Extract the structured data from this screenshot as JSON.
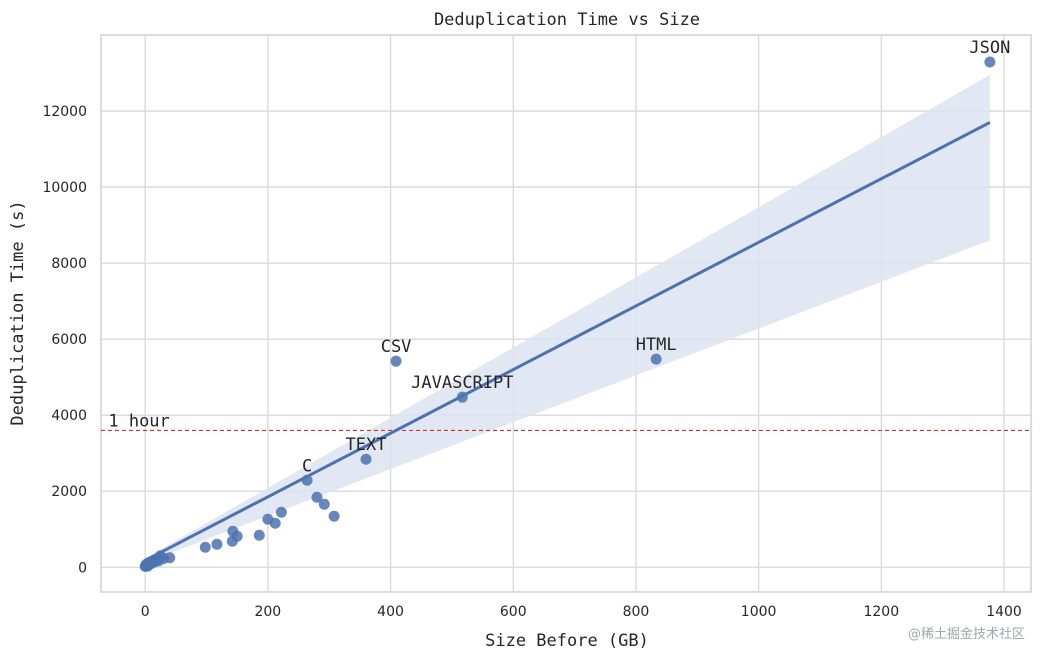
{
  "chart_data": {
    "type": "scatter",
    "title": "Deduplication Time vs Size",
    "xlabel": "Size Before (GB)",
    "ylabel": "Deduplication Time (s)",
    "xlim": [
      -72,
      1444
    ],
    "ylim": [
      -650,
      14000
    ],
    "xticks": [
      0,
      200,
      400,
      600,
      800,
      1000,
      1200,
      1400
    ],
    "yticks": [
      0,
      2000,
      4000,
      6000,
      8000,
      10000,
      12000
    ],
    "grid": true,
    "points": [
      {
        "x": 0,
        "y": 20
      },
      {
        "x": 1,
        "y": 60
      },
      {
        "x": 2,
        "y": 40
      },
      {
        "x": 3,
        "y": 90
      },
      {
        "x": 4,
        "y": 30
      },
      {
        "x": 5,
        "y": 110
      },
      {
        "x": 6,
        "y": 70
      },
      {
        "x": 8,
        "y": 130
      },
      {
        "x": 10,
        "y": 100
      },
      {
        "x": 12,
        "y": 160
      },
      {
        "x": 15,
        "y": 140
      },
      {
        "x": 18,
        "y": 190
      },
      {
        "x": 22,
        "y": 170
      },
      {
        "x": 25,
        "y": 300
      },
      {
        "x": 30,
        "y": 230
      },
      {
        "x": 40,
        "y": 250
      },
      {
        "x": 98,
        "y": 526
      },
      {
        "x": 117,
        "y": 605
      },
      {
        "x": 142,
        "y": 684
      },
      {
        "x": 143,
        "y": 947
      },
      {
        "x": 150,
        "y": 816
      },
      {
        "x": 186,
        "y": 842
      },
      {
        "x": 200,
        "y": 1263
      },
      {
        "x": 212,
        "y": 1158
      },
      {
        "x": 222,
        "y": 1447
      },
      {
        "x": 264,
        "y": 2289,
        "label": "C"
      },
      {
        "x": 280,
        "y": 1842
      },
      {
        "x": 292,
        "y": 1658
      },
      {
        "x": 308,
        "y": 1342
      },
      {
        "x": 360,
        "y": 2842,
        "label": "TEXT"
      },
      {
        "x": 409,
        "y": 5421,
        "label": "CSV"
      },
      {
        "x": 517,
        "y": 4474,
        "label": "JAVASCRIPT"
      },
      {
        "x": 833,
        "y": 5474,
        "label": "HTML"
      },
      {
        "x": 1377,
        "y": 13289,
        "label": "JSON"
      }
    ],
    "regression": {
      "x0": 0,
      "y0": 180,
      "x1": 1377,
      "y1": 11700,
      "ci_upper_end": 12950,
      "ci_lower_end": 8600
    },
    "reference_line": {
      "y": 3600,
      "label": "1 hour",
      "color": "#e0302a"
    },
    "point_color": "#4c72b0",
    "band_color": "#dde4f1"
  },
  "watermark": "@稀土掘金技术社区"
}
